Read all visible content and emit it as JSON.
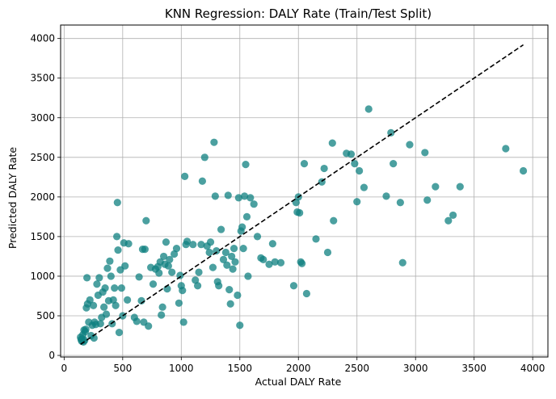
{
  "chart_data": {
    "type": "scatter",
    "title": "KNN Regression: DALY Rate (Train/Test Split)",
    "xlabel": "Actual DALY Rate",
    "ylabel": "Predicted DALY Rate",
    "xlim": [
      -30,
      4130
    ],
    "ylim": [
      -20,
      4170
    ],
    "xticks": [
      0,
      500,
      1000,
      1500,
      2000,
      2500,
      3000,
      3500,
      4000
    ],
    "yticks": [
      0,
      500,
      1000,
      1500,
      2000,
      2500,
      3000,
      3500,
      4000
    ],
    "grid": true,
    "point_color": "#0f8080",
    "reference_line": {
      "style": "dashed",
      "color": "#000000",
      "x": [
        140,
        3920
      ],
      "y": [
        140,
        3920
      ]
    },
    "points": [
      [
        140,
        230
      ],
      [
        145,
        200
      ],
      [
        150,
        180
      ],
      [
        155,
        210
      ],
      [
        160,
        260
      ],
      [
        165,
        170
      ],
      [
        170,
        320
      ],
      [
        175,
        190
      ],
      [
        180,
        300
      ],
      [
        185,
        330
      ],
      [
        190,
        600
      ],
      [
        195,
        980
      ],
      [
        200,
        650
      ],
      [
        210,
        420
      ],
      [
        220,
        700
      ],
      [
        230,
        250
      ],
      [
        240,
        380
      ],
      [
        250,
        630
      ],
      [
        255,
        220
      ],
      [
        260,
        420
      ],
      [
        270,
        390
      ],
      [
        280,
        900
      ],
      [
        290,
        760
      ],
      [
        300,
        980
      ],
      [
        310,
        400
      ],
      [
        320,
        480
      ],
      [
        330,
        800
      ],
      [
        340,
        610
      ],
      [
        350,
        850
      ],
      [
        360,
        520
      ],
      [
        370,
        1100
      ],
      [
        380,
        690
      ],
      [
        390,
        1190
      ],
      [
        400,
        1000
      ],
      [
        410,
        400
      ],
      [
        420,
        700
      ],
      [
        430,
        850
      ],
      [
        440,
        630
      ],
      [
        450,
        1500
      ],
      [
        455,
        1930
      ],
      [
        460,
        1330
      ],
      [
        470,
        290
      ],
      [
        480,
        1080
      ],
      [
        490,
        850
      ],
      [
        500,
        500
      ],
      [
        510,
        1420
      ],
      [
        520,
        1130
      ],
      [
        540,
        700
      ],
      [
        550,
        1410
      ],
      [
        600,
        480
      ],
      [
        620,
        430
      ],
      [
        640,
        990
      ],
      [
        660,
        690
      ],
      [
        670,
        1340
      ],
      [
        680,
        420
      ],
      [
        690,
        1340
      ],
      [
        700,
        1700
      ],
      [
        720,
        370
      ],
      [
        740,
        1110
      ],
      [
        760,
        900
      ],
      [
        780,
        1090
      ],
      [
        800,
        1120
      ],
      [
        810,
        1040
      ],
      [
        820,
        1180
      ],
      [
        830,
        510
      ],
      [
        840,
        610
      ],
      [
        850,
        1250
      ],
      [
        860,
        1150
      ],
      [
        870,
        1430
      ],
      [
        880,
        840
      ],
      [
        890,
        1130
      ],
      [
        900,
        1210
      ],
      [
        920,
        1050
      ],
      [
        940,
        1280
      ],
      [
        960,
        1350
      ],
      [
        980,
        660
      ],
      [
        990,
        1010
      ],
      [
        1000,
        880
      ],
      [
        1010,
        820
      ],
      [
        1020,
        420
      ],
      [
        1030,
        2260
      ],
      [
        1040,
        1400
      ],
      [
        1050,
        1440
      ],
      [
        1100,
        1400
      ],
      [
        1120,
        950
      ],
      [
        1140,
        880
      ],
      [
        1150,
        1050
      ],
      [
        1170,
        1400
      ],
      [
        1180,
        2200
      ],
      [
        1200,
        2500
      ],
      [
        1220,
        1380
      ],
      [
        1240,
        1300
      ],
      [
        1250,
        1430
      ],
      [
        1270,
        1110
      ],
      [
        1280,
        2690
      ],
      [
        1290,
        2010
      ],
      [
        1300,
        1320
      ],
      [
        1310,
        930
      ],
      [
        1320,
        880
      ],
      [
        1340,
        1590
      ],
      [
        1360,
        1210
      ],
      [
        1380,
        1300
      ],
      [
        1390,
        1140
      ],
      [
        1400,
        2020
      ],
      [
        1410,
        830
      ],
      [
        1420,
        650
      ],
      [
        1430,
        1250
      ],
      [
        1440,
        1090
      ],
      [
        1450,
        1350
      ],
      [
        1460,
        1180
      ],
      [
        1480,
        760
      ],
      [
        1490,
        1990
      ],
      [
        1500,
        380
      ],
      [
        1510,
        1570
      ],
      [
        1520,
        1620
      ],
      [
        1530,
        1350
      ],
      [
        1540,
        2010
      ],
      [
        1550,
        2410
      ],
      [
        1560,
        1750
      ],
      [
        1570,
        1000
      ],
      [
        1590,
        1990
      ],
      [
        1620,
        1910
      ],
      [
        1650,
        1500
      ],
      [
        1680,
        1230
      ],
      [
        1700,
        1210
      ],
      [
        1750,
        1150
      ],
      [
        1780,
        1410
      ],
      [
        1800,
        1180
      ],
      [
        1850,
        1170
      ],
      [
        1960,
        880
      ],
      [
        1980,
        1930
      ],
      [
        1990,
        1810
      ],
      [
        2000,
        2000
      ],
      [
        2010,
        1800
      ],
      [
        2020,
        1180
      ],
      [
        2030,
        1160
      ],
      [
        2050,
        2420
      ],
      [
        2070,
        780
      ],
      [
        2150,
        1470
      ],
      [
        2200,
        2190
      ],
      [
        2220,
        2360
      ],
      [
        2250,
        1300
      ],
      [
        2290,
        2680
      ],
      [
        2300,
        1700
      ],
      [
        2410,
        2550
      ],
      [
        2450,
        2540
      ],
      [
        2480,
        2420
      ],
      [
        2500,
        1940
      ],
      [
        2520,
        2330
      ],
      [
        2560,
        2120
      ],
      [
        2600,
        3110
      ],
      [
        2750,
        2010
      ],
      [
        2790,
        2810
      ],
      [
        2810,
        2420
      ],
      [
        2870,
        1930
      ],
      [
        2890,
        1170
      ],
      [
        2950,
        2660
      ],
      [
        3080,
        2560
      ],
      [
        3100,
        1960
      ],
      [
        3170,
        2130
      ],
      [
        3280,
        1700
      ],
      [
        3320,
        1770
      ],
      [
        3380,
        2130
      ],
      [
        3770,
        2610
      ],
      [
        3920,
        2330
      ]
    ]
  }
}
